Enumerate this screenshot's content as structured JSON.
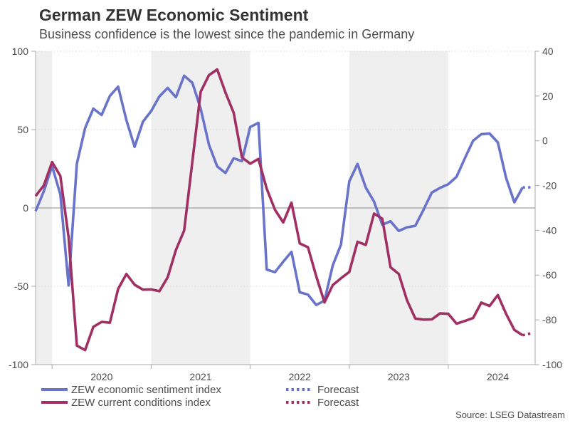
{
  "source": "Source: LSEG Datastream",
  "legend": {
    "items": [
      {
        "label": "ZEW economic sentiment index",
        "color": "#6973c9",
        "style": "solid"
      },
      {
        "label": "ZEW current conditions index",
        "color": "#a02f63",
        "style": "solid"
      },
      {
        "label": "Forecast",
        "color": "#6973c9",
        "style": "dotted"
      },
      {
        "label": "Forecast",
        "color": "#a02f63",
        "style": "dotted"
      }
    ]
  },
  "chart_data": {
    "type": "line",
    "title": "German ZEW Economic Sentiment",
    "subtitle": "Business confidence is the lowest since the pandemic in Germany",
    "x": [
      "2019-11",
      "2019-12",
      "2020-01",
      "2020-02",
      "2020-03",
      "2020-04",
      "2020-05",
      "2020-06",
      "2020-07",
      "2020-08",
      "2020-09",
      "2020-10",
      "2020-11",
      "2020-12",
      "2021-01",
      "2021-02",
      "2021-03",
      "2021-04",
      "2021-05",
      "2021-06",
      "2021-07",
      "2021-08",
      "2021-09",
      "2021-10",
      "2021-11",
      "2021-12",
      "2022-01",
      "2022-02",
      "2022-03",
      "2022-04",
      "2022-05",
      "2022-06",
      "2022-07",
      "2022-08",
      "2022-09",
      "2022-10",
      "2022-11",
      "2022-12",
      "2023-01",
      "2023-02",
      "2023-03",
      "2023-04",
      "2023-05",
      "2023-06",
      "2023-07",
      "2023-08",
      "2023-09",
      "2023-10",
      "2023-11",
      "2023-12",
      "2024-01",
      "2024-02",
      "2024-03",
      "2024-04",
      "2024-05",
      "2024-06",
      "2024-07",
      "2024-08",
      "2024-09",
      "2024-10",
      "2024-11"
    ],
    "series": [
      {
        "name": "ZEW economic sentiment index",
        "axis": "left",
        "color": "#6973c9",
        "solid_until_index": 59,
        "forecast_label": "Forecast",
        "values": [
          -2.1,
          10.7,
          26.7,
          8.7,
          -49.5,
          28.2,
          51.0,
          63.4,
          59.3,
          71.5,
          77.4,
          56.1,
          39.0,
          55.0,
          61.8,
          71.2,
          76.6,
          70.7,
          84.4,
          79.8,
          63.3,
          40.4,
          26.5,
          22.3,
          31.7,
          29.9,
          51.7,
          54.3,
          -39.3,
          -41.0,
          -34.3,
          -28.0,
          -53.8,
          -55.3,
          -61.9,
          -59.2,
          -36.7,
          -23.3,
          16.9,
          28.1,
          13.0,
          4.1,
          -10.7,
          -8.5,
          -14.7,
          -12.3,
          -11.4,
          -1.1,
          9.8,
          12.8,
          15.2,
          19.9,
          31.7,
          42.9,
          47.1,
          47.5,
          41.8,
          19.2,
          3.6,
          13.1,
          13.2
        ]
      },
      {
        "name": "ZEW current conditions index",
        "axis": "right",
        "color": "#a02f63",
        "solid_until_index": 59,
        "forecast_label": "Forecast",
        "values": [
          -24.7,
          -19.9,
          -9.5,
          -15.7,
          -43.1,
          -91.5,
          -93.5,
          -83.1,
          -80.9,
          -81.3,
          -66.2,
          -59.5,
          -64.3,
          -66.5,
          -66.4,
          -67.2,
          -61.0,
          -48.8,
          -40.1,
          -9.1,
          21.9,
          29.3,
          31.9,
          21.6,
          12.5,
          -7.4,
          -10.2,
          -8.1,
          -21.4,
          -30.8,
          -36.5,
          -27.6,
          -45.8,
          -47.6,
          -60.5,
          -72.2,
          -64.5,
          -61.4,
          -58.6,
          -45.1,
          -46.5,
          -32.5,
          -34.8,
          -56.5,
          -59.5,
          -71.3,
          -79.4,
          -79.9,
          -79.8,
          -77.1,
          -77.3,
          -81.7,
          -80.5,
          -79.2,
          -72.3,
          -73.8,
          -68.9,
          -77.3,
          -84.5,
          -86.9,
          -86.0
        ]
      }
    ],
    "left_axis": {
      "ticks": [
        100,
        50,
        0,
        -50,
        -100
      ],
      "range": [
        -100,
        100
      ],
      "dotted_gridlines": [
        100,
        50,
        -50
      ],
      "zero_line_value": 0
    },
    "right_axis": {
      "ticks": [
        40,
        20,
        0,
        -20,
        -40,
        -60,
        -80,
        -100
      ],
      "range": [
        -100,
        40
      ]
    },
    "x_axis": {
      "year_labels": [
        "2020",
        "2021",
        "2022",
        "2023",
        "2024"
      ],
      "year_start_indices": [
        2,
        14,
        26,
        38,
        50
      ],
      "year_label_center_indices": [
        8,
        20,
        32,
        44,
        56
      ],
      "shaded_index_ranges": [
        [
          0,
          2
        ],
        [
          14,
          26
        ],
        [
          38,
          50
        ]
      ]
    },
    "colors": {
      "band": "#efefef",
      "grid": "#d8d8d8",
      "zero": "#8a8a8a",
      "axis": "#a8a8a8",
      "text": "#4d4d4d"
    },
    "legend_position": "bottom"
  }
}
